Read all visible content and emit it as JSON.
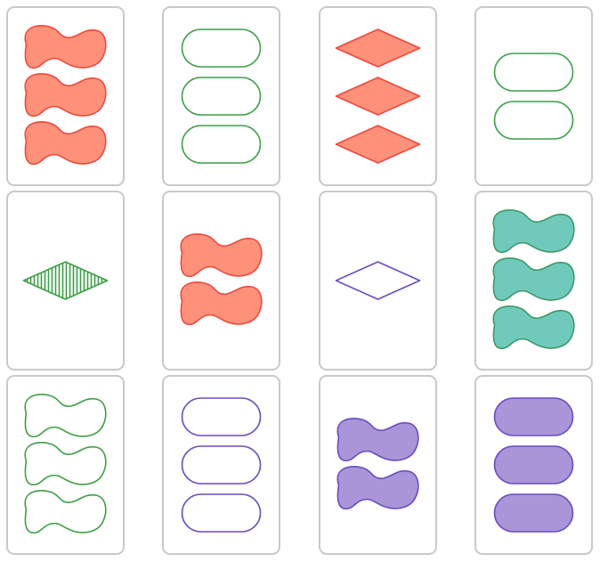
{
  "game": {
    "name": "set-card-game",
    "colors": {
      "red": {
        "stroke": "#f0483e",
        "fill": "#ff917b"
      },
      "green": {
        "stroke": "#3c9f45",
        "fill": "#3c9f45"
      },
      "purple": {
        "stroke": "#6b4cc0",
        "fill": "#a995d8"
      },
      "teal": {
        "stroke": "#3b9a63",
        "fill": "#6fcabb"
      },
      "card_border": "#c9c9c9"
    },
    "cards": [
      {
        "count": 3,
        "shape": "squiggle",
        "color": "red",
        "shading": "solid"
      },
      {
        "count": 3,
        "shape": "oval",
        "color": "green",
        "shading": "outline"
      },
      {
        "count": 3,
        "shape": "diamond",
        "color": "red",
        "shading": "solid"
      },
      {
        "count": 2,
        "shape": "oval",
        "color": "green",
        "shading": "outline"
      },
      {
        "count": 1,
        "shape": "diamond",
        "color": "green",
        "shading": "striped"
      },
      {
        "count": 2,
        "shape": "squiggle",
        "color": "red",
        "shading": "solid"
      },
      {
        "count": 1,
        "shape": "diamond",
        "color": "purple",
        "shading": "outline"
      },
      {
        "count": 3,
        "shape": "squiggle",
        "color": "teal",
        "shading": "solid"
      },
      {
        "count": 3,
        "shape": "squiggle",
        "color": "green",
        "shading": "outline"
      },
      {
        "count": 3,
        "shape": "oval",
        "color": "purple",
        "shading": "outline"
      },
      {
        "count": 2,
        "shape": "squiggle",
        "color": "purple",
        "shading": "solid"
      },
      {
        "count": 3,
        "shape": "oval",
        "color": "purple",
        "shading": "solid"
      }
    ]
  }
}
